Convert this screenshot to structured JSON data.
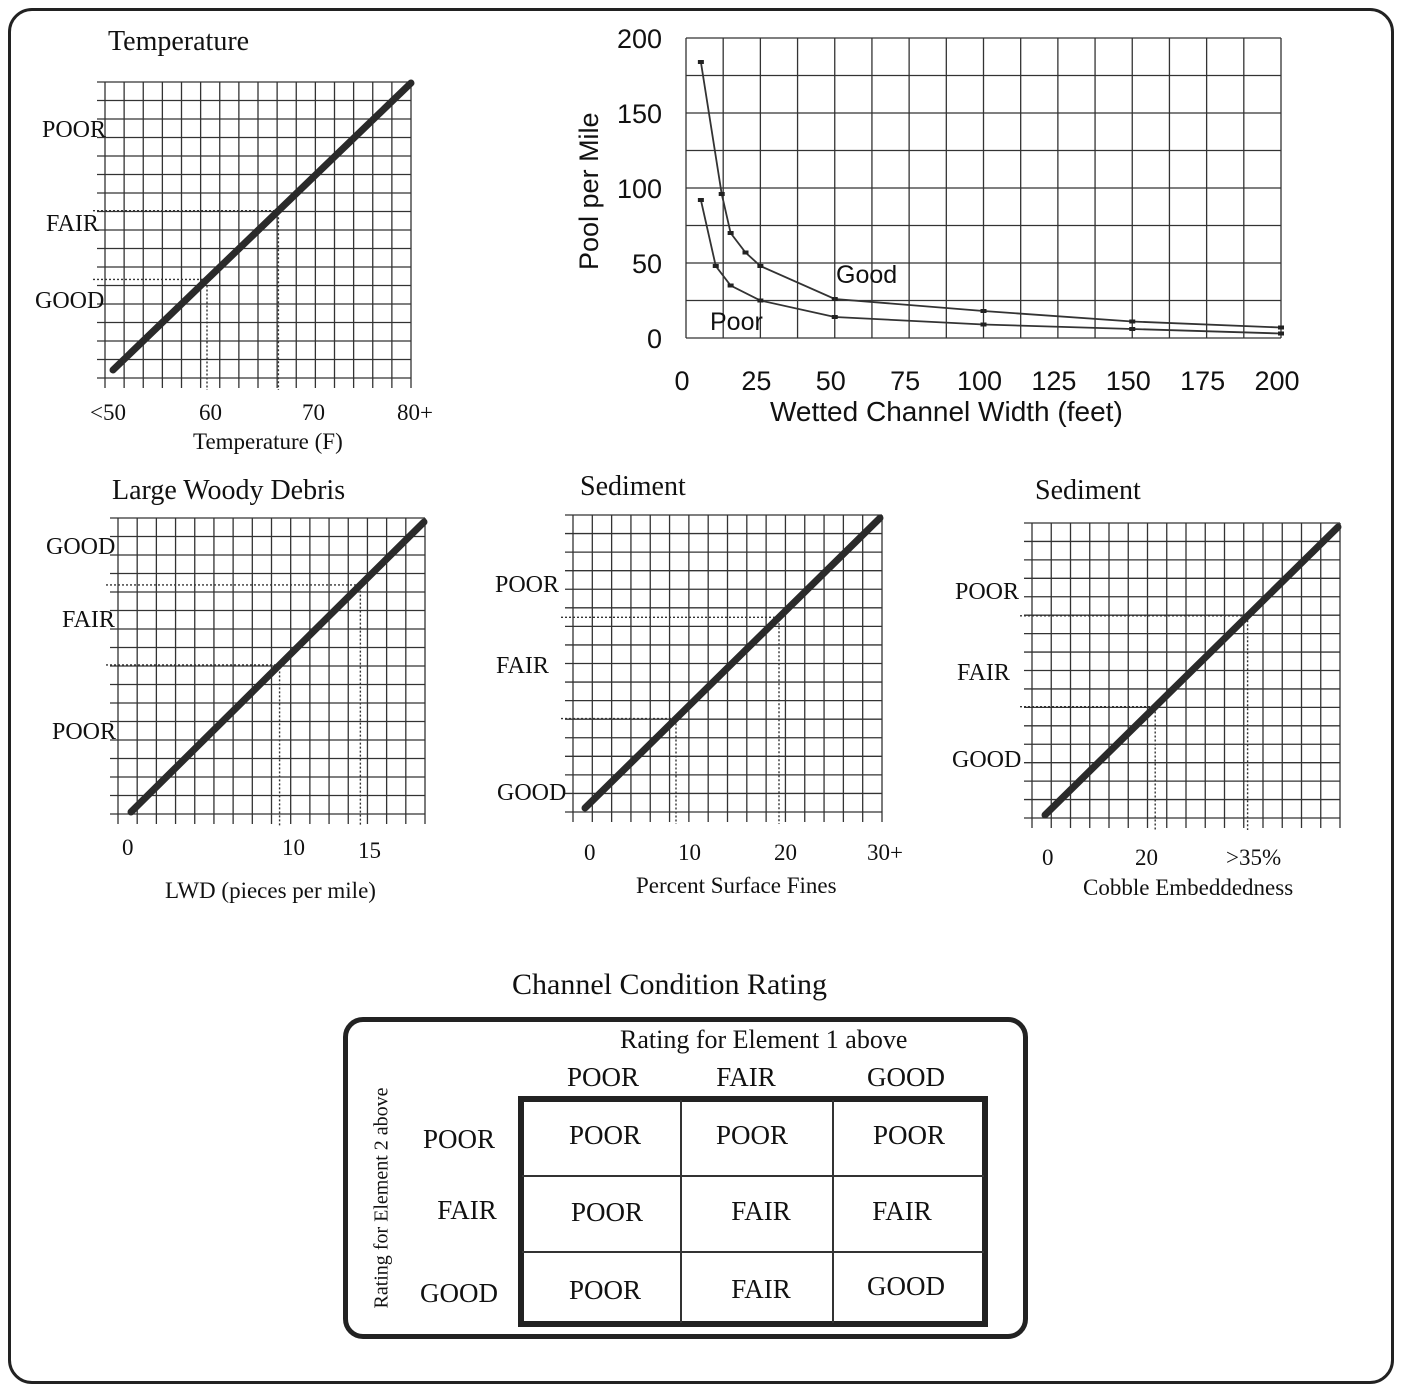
{
  "charts": {
    "temperature": {
      "title": "Temperature",
      "ratings": [
        "POOR",
        "FAIR",
        "GOOD"
      ],
      "xticks": [
        "<50",
        "60",
        "70",
        "80+"
      ],
      "xlabel": "Temperature (F)"
    },
    "pools": {
      "ylabel": "Pool per Mile",
      "xlabel": "Wetted Channel Width (feet)",
      "yticks": [
        "0",
        "50",
        "100",
        "150",
        "200"
      ],
      "xticks": [
        "0",
        "25",
        "50",
        "75",
        "100",
        "125",
        "150",
        "175",
        "200"
      ],
      "good_label": "Good",
      "poor_label": "Poor"
    },
    "lwd": {
      "title": "Large Woody Debris",
      "ratings": [
        "GOOD",
        "FAIR",
        "POOR"
      ],
      "xticks": [
        "0",
        "10",
        "15"
      ],
      "xlabel": "LWD (pieces per mile)"
    },
    "fines": {
      "title": "Sediment",
      "ratings": [
        "POOR",
        "FAIR",
        "GOOD"
      ],
      "xticks": [
        "0",
        "10",
        "20",
        "30+"
      ],
      "xlabel": "Percent Surface Fines"
    },
    "cobble": {
      "title": "Sediment",
      "ratings": [
        "POOR",
        "FAIR",
        "GOOD"
      ],
      "xticks": [
        "0",
        "20",
        ">35%"
      ],
      "xlabel": "Cobble Embeddedness"
    }
  },
  "chart_data": [
    {
      "type": "line",
      "title": "Temperature",
      "xlabel": "Temperature (F)",
      "x_ticks": [
        "<50",
        "60",
        "70",
        "80+"
      ],
      "xlim": [
        50,
        80
      ],
      "y_categories": [
        "GOOD",
        "FAIR",
        "POOR"
      ],
      "series": [
        {
          "x": [
            50,
            80
          ],
          "y": [
            0,
            1
          ]
        }
      ],
      "reference_lines": [
        {
          "x": 60
        },
        {
          "x": 67
        }
      ],
      "grid": true
    },
    {
      "type": "line",
      "xlabel": "Wetted Channel Width (feet)",
      "ylabel": "Pool per Mile",
      "xlim": [
        0,
        200
      ],
      "ylim": [
        0,
        200
      ],
      "grid": true,
      "series": [
        {
          "name": "Good",
          "x": [
            5,
            12,
            15,
            20,
            25,
            50,
            100,
            150,
            200
          ],
          "y": [
            184,
            96,
            70,
            57,
            48,
            26,
            18,
            11,
            7
          ]
        },
        {
          "name": "Poor",
          "x": [
            5,
            10,
            15,
            25,
            50,
            100,
            150,
            200
          ],
          "y": [
            92,
            48,
            35,
            25,
            14,
            9,
            6,
            3
          ]
        }
      ]
    },
    {
      "type": "line",
      "title": "Large Woody Debris",
      "xlabel": "LWD (pieces per mile)",
      "x_ticks": [
        "0",
        "10",
        "15"
      ],
      "xlim": [
        0,
        19
      ],
      "y_categories": [
        "POOR",
        "FAIR",
        "GOOD"
      ],
      "series": [
        {
          "x": [
            0,
            19
          ],
          "y": [
            0,
            1
          ]
        }
      ],
      "reference_lines": [
        {
          "x": 10
        },
        {
          "x": 15
        }
      ],
      "grid": true
    },
    {
      "type": "line",
      "title": "Sediment",
      "xlabel": "Percent Surface Fines",
      "x_ticks": [
        "0",
        "10",
        "20",
        "30+"
      ],
      "xlim": [
        0,
        30
      ],
      "y_categories": [
        "GOOD",
        "FAIR",
        "POOR"
      ],
      "series": [
        {
          "x": [
            0,
            30
          ],
          "y": [
            0,
            1
          ]
        }
      ],
      "reference_lines": [
        {
          "x": 10
        },
        {
          "x": 20
        }
      ],
      "grid": true
    },
    {
      "type": "line",
      "title": "Sediment",
      "xlabel": "Cobble Embeddedness",
      "x_ticks": [
        "0",
        "20",
        ">35%"
      ],
      "xlim": [
        0,
        50
      ],
      "y_categories": [
        "GOOD",
        "FAIR",
        "POOR"
      ],
      "series": [
        {
          "x": [
            0,
            50
          ],
          "y": [
            0,
            1
          ]
        }
      ],
      "reference_lines": [
        {
          "x": 20
        },
        {
          "x": 35
        }
      ],
      "grid": true
    },
    {
      "type": "table",
      "title": "Channel Condition Rating",
      "column_header": "Rating for Element 1 above",
      "row_header": "Rating for Element 2 above",
      "columns": [
        "POOR",
        "FAIR",
        "GOOD"
      ],
      "rows": [
        "POOR",
        "FAIR",
        "GOOD"
      ],
      "cells": [
        [
          "POOR",
          "POOR",
          "POOR"
        ],
        [
          "POOR",
          "FAIR",
          "FAIR"
        ],
        [
          "POOR",
          "FAIR",
          "GOOD"
        ]
      ]
    }
  ],
  "matrix": {
    "title": "Channel Condition Rating",
    "col_header": "Rating for Element 1 above",
    "row_header": "Rating for Element 2 above",
    "columns": [
      "POOR",
      "FAIR",
      "GOOD"
    ],
    "rows": [
      "POOR",
      "FAIR",
      "GOOD"
    ],
    "cells": [
      [
        "POOR",
        "POOR",
        "POOR"
      ],
      [
        "POOR",
        "FAIR",
        "FAIR"
      ],
      [
        "POOR",
        "FAIR",
        "GOOD"
      ]
    ]
  }
}
